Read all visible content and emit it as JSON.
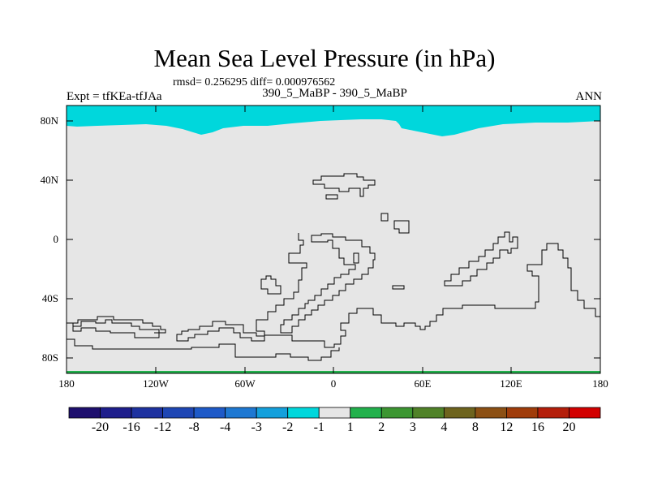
{
  "title": "Mean Sea Level Pressure (in hPa)",
  "stats_text": "rmsd= 0.256295 diff= 0.000976562",
  "expt_text": "Expt = tfKEa-tfJAa",
  "case_text": "390_5_MaBP - 390_5_MaBP",
  "season": "ANN",
  "map": {
    "projection": "cylindrical-equidistant",
    "lon_range": [
      -180,
      180
    ],
    "lat_range": [
      -90,
      90
    ],
    "lat_ticks": [
      "80N",
      "40N",
      "0",
      "40S",
      "80S"
    ],
    "lon_ticks": [
      "180",
      "120W",
      "60W",
      "0",
      "60E",
      "120E",
      "180"
    ],
    "colors": {
      "background_field": "#e6e6e6",
      "polar_north_fill": "#00d7dc",
      "south_edge_fill": "#22b14c",
      "coastline": "#000000"
    }
  },
  "colorbar": {
    "labels": [
      "-20",
      "-16",
      "-12",
      "-8",
      "-4",
      "-3",
      "-2",
      "-1",
      "1",
      "2",
      "3",
      "4",
      "8",
      "12",
      "16",
      "20"
    ],
    "colors": [
      "#1e0f6e",
      "#1e1e8c",
      "#1e32a0",
      "#1e46b4",
      "#1e5ac8",
      "#1e78d2",
      "#14a0dc",
      "#00d7dc",
      "#e6e6e6",
      "#22b14c",
      "#3c9632",
      "#508228",
      "#6e641e",
      "#8c5014",
      "#a03c0a",
      "#b41e0a",
      "#d20000"
    ]
  }
}
